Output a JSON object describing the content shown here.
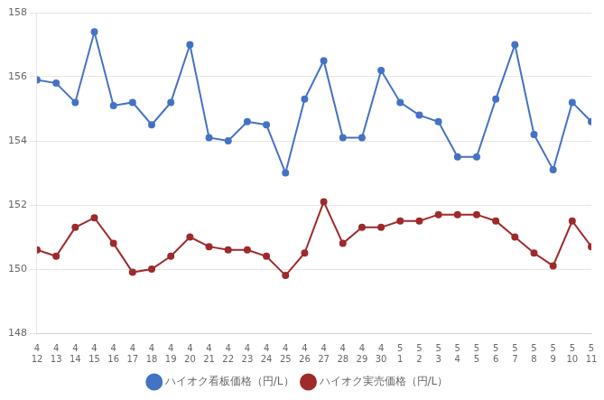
{
  "chart_data": {
    "type": "line",
    "categories": [
      "4\n12",
      "4\n13",
      "4\n14",
      "4\n15",
      "4\n16",
      "4\n17",
      "4\n18",
      "4\n19",
      "4\n20",
      "4\n21",
      "4\n22",
      "4\n23",
      "4\n24",
      "4\n25",
      "4\n26",
      "4\n27",
      "4\n28",
      "4\n29",
      "4\n30",
      "5\n1",
      "5\n2",
      "5\n3",
      "5\n4",
      "5\n5",
      "5\n6",
      "5\n7",
      "5\n8",
      "5\n9",
      "5\n10",
      "5\n11"
    ],
    "series": [
      {
        "name": "ハイオク看板価格（円/L）",
        "color": "#4472C4",
        "marker": "circle",
        "values": [
          155.9,
          155.8,
          155.2,
          157.4,
          155.1,
          155.2,
          154.5,
          155.2,
          157.0,
          154.1,
          154.0,
          154.6,
          154.5,
          153.0,
          155.3,
          156.5,
          154.1,
          154.1,
          156.2,
          155.2,
          154.8,
          154.6,
          153.5,
          153.5,
          155.3,
          157.0,
          154.2,
          153.1,
          155.2,
          154.6
        ]
      },
      {
        "name": "ハイオク実売価格（円/L）",
        "color": "#9E2A2B",
        "marker": "circle",
        "values": [
          150.6,
          150.4,
          151.3,
          151.6,
          150.8,
          149.9,
          150.0,
          150.4,
          151.0,
          150.7,
          150.6,
          150.6,
          150.4,
          149.8,
          150.5,
          152.1,
          150.8,
          151.3,
          151.3,
          151.5,
          151.5,
          151.7,
          151.7,
          151.7,
          151.5,
          151.0,
          150.5,
          150.1,
          151.5,
          150.7
        ]
      }
    ],
    "ylim": [
      148,
      158
    ],
    "yticks": [
      148,
      150,
      152,
      154,
      156,
      158
    ],
    "grid": true,
    "legend": "bottom"
  }
}
